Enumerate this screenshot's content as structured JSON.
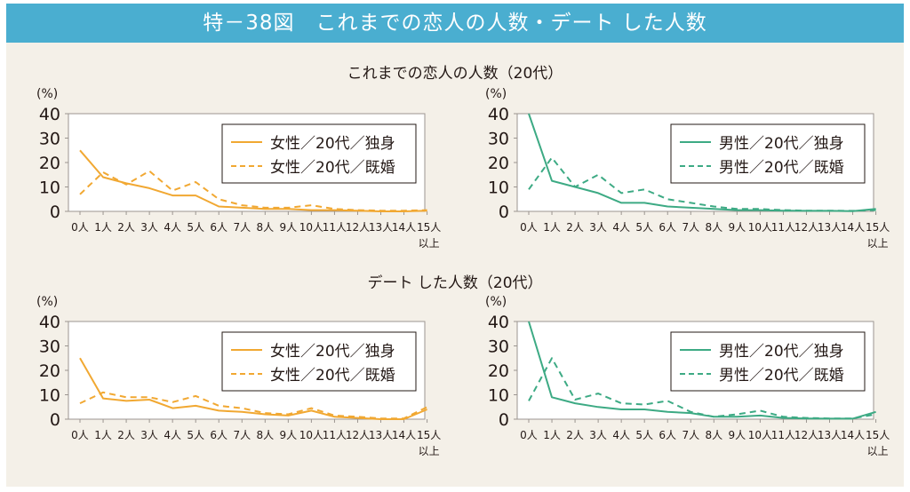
{
  "header": {
    "title": "特－38図　これまでの恋人の人数・デート した人数"
  },
  "sections": [
    {
      "title": "これまでの恋人の人数（20代）"
    },
    {
      "title": "デート した人数（20代）"
    }
  ],
  "chart_data": [
    {
      "type": "line",
      "section": "これまでの恋人の人数（20代）",
      "ylabel": "(%)",
      "ylim": [
        0,
        40
      ],
      "yticks": [
        0,
        10,
        20,
        30,
        40
      ],
      "categories": [
        "0人",
        "1人",
        "2人",
        "3人",
        "4人",
        "5人",
        "6人",
        "7人",
        "8人",
        "9人",
        "10人",
        "11人",
        "12人",
        "13人",
        "14人",
        "15人以上"
      ],
      "legend_position": "top-right",
      "series": [
        {
          "name": "女性／20代／独身",
          "color": "#f1a832",
          "dash": "solid",
          "values": [
            25,
            14,
            11.5,
            9.5,
            6.5,
            6.5,
            2,
            1.5,
            1,
            1,
            0.5,
            0.5,
            0.3,
            0,
            0,
            0.3
          ]
        },
        {
          "name": "女性／20代／既婚",
          "color": "#f1a832",
          "dash": "dashed",
          "values": [
            7,
            16,
            11,
            16.5,
            8.5,
            12,
            5,
            2.5,
            1.5,
            1.5,
            2.5,
            1,
            0.5,
            0.3,
            0.3,
            0.5
          ]
        }
      ]
    },
    {
      "type": "line",
      "section": "これまでの恋人の人数（20代）",
      "ylabel": "(%)",
      "ylim": [
        0,
        40
      ],
      "yticks": [
        0,
        10,
        20,
        30,
        40
      ],
      "categories": [
        "0人",
        "1人",
        "2人",
        "3人",
        "4人",
        "5人",
        "6人",
        "7人",
        "8人",
        "9人",
        "10人",
        "11人",
        "12人",
        "13人",
        "14人",
        "15人以上"
      ],
      "legend_position": "top-right",
      "series": [
        {
          "name": "男性／20代／独身",
          "color": "#3daa84",
          "dash": "solid",
          "values": [
            40,
            12.5,
            10,
            7.5,
            3.5,
            3.5,
            2,
            1.5,
            1,
            0.5,
            0.5,
            0.3,
            0.2,
            0.2,
            0.1,
            1
          ]
        },
        {
          "name": "男性／20代／既婚",
          "color": "#3daa84",
          "dash": "dashed",
          "values": [
            9,
            22,
            10,
            15,
            7.5,
            9,
            5,
            3.5,
            2,
            1,
            1,
            0.5,
            0.3,
            0.3,
            0.2,
            0.5
          ]
        }
      ]
    },
    {
      "type": "line",
      "section": "デート した人数（20代）",
      "ylabel": "(%)",
      "ylim": [
        0,
        40
      ],
      "yticks": [
        0,
        10,
        20,
        30,
        40
      ],
      "categories": [
        "0人",
        "1人",
        "2人",
        "3人",
        "4人",
        "5人",
        "6人",
        "7人",
        "8人",
        "9人",
        "10人",
        "11人",
        "12人",
        "13人",
        "14人",
        "15人以上"
      ],
      "legend_position": "top-right",
      "series": [
        {
          "name": "女性／20代／独身",
          "color": "#f1a832",
          "dash": "solid",
          "values": [
            25,
            8.5,
            7.5,
            8,
            4.5,
            5.5,
            3.5,
            3,
            2,
            1.5,
            3.5,
            1,
            0.5,
            0,
            0,
            4
          ]
        },
        {
          "name": "女性／20代／既婚",
          "color": "#f1a832",
          "dash": "dashed",
          "values": [
            6.5,
            11,
            9,
            9,
            7,
            9.5,
            5.5,
            4.5,
            2.5,
            2,
            4.5,
            1.5,
            1,
            0.3,
            0.3,
            5
          ]
        }
      ]
    },
    {
      "type": "line",
      "section": "デート した人数（20代）",
      "ylabel": "(%)",
      "ylim": [
        0,
        40
      ],
      "yticks": [
        0,
        10,
        20,
        30,
        40
      ],
      "categories": [
        "0人",
        "1人",
        "2人",
        "3人",
        "4人",
        "5人",
        "6人",
        "7人",
        "8人",
        "9人",
        "10人",
        "11人",
        "12人",
        "13人",
        "14人",
        "15人以上"
      ],
      "legend_position": "top-right",
      "series": [
        {
          "name": "男性／20代／独身",
          "color": "#3daa84",
          "dash": "solid",
          "values": [
            40,
            9,
            6.5,
            5,
            4,
            4,
            3,
            2.5,
            1,
            1,
            1.5,
            0.5,
            0.3,
            0.2,
            0.2,
            3
          ]
        },
        {
          "name": "男性／20代／既婚",
          "color": "#3daa84",
          "dash": "dashed",
          "values": [
            7.5,
            25,
            8,
            10.5,
            6.5,
            6,
            7.5,
            3,
            1,
            2,
            3.5,
            1,
            0.5,
            0.3,
            0.3,
            2
          ]
        }
      ]
    }
  ]
}
